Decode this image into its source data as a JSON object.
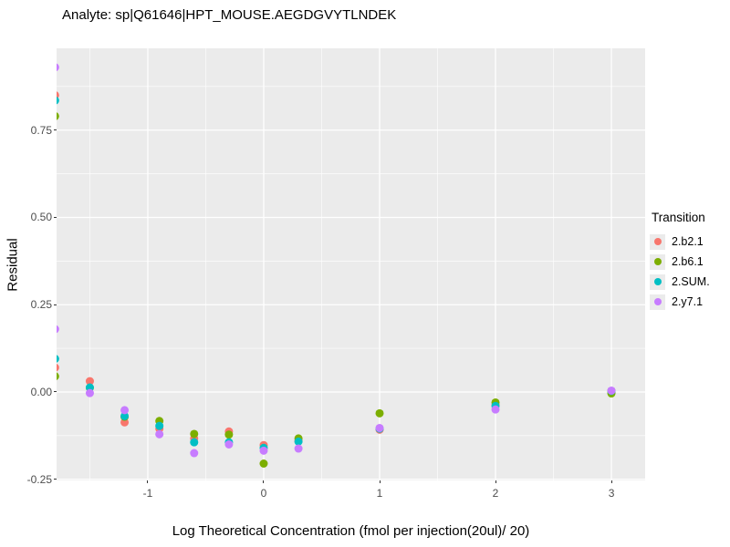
{
  "title": "Analyte: sp|Q61646|HPT_MOUSE.AEGDGVYTLNDEK",
  "legend": {
    "title": "Transition",
    "items": [
      {
        "label": "2.b2.1",
        "color": "#F8766D"
      },
      {
        "label": "2.b6.1",
        "color": "#7CAE00"
      },
      {
        "label": "2.SUM.",
        "color": "#00BFC4"
      },
      {
        "label": "2.y7.1",
        "color": "#C77CFF"
      }
    ]
  },
  "chart_data": {
    "type": "scatter",
    "title": "Analyte: sp|Q61646|HPT_MOUSE.AEGDGVYTLNDEK",
    "xlabel": "Log Theoretical Concentration (fmol per injection(20ul)/ 20)",
    "ylabel": "Residual",
    "xlim": [
      -1.787,
      3.291
    ],
    "ylim": [
      -0.2533,
      0.9843
    ],
    "x_ticks": {
      "values": [
        -1,
        0,
        1,
        2,
        3
      ],
      "labels": [
        "-1",
        "0",
        "1",
        "2",
        "3"
      ]
    },
    "y_ticks": {
      "values": [
        0.75,
        0.5,
        0.25,
        0,
        -0.25
      ],
      "labels": [
        "0.75",
        "0.50",
        "0.25",
        "0.00",
        "-0.25"
      ]
    },
    "x_minor": [
      -1.5,
      -0.5,
      0.5,
      1.5,
      2.5
    ],
    "y_minor": [
      0.875,
      0.625,
      0.375,
      0.125,
      -0.125
    ],
    "grid": {
      "panel_bg": "#EBEBEB",
      "major_color": "#FFFFFF",
      "minor_color": "#FFFFFF"
    },
    "legend_position": "right",
    "point_radius": 4.5,
    "series": [
      {
        "name": "2.b2.1",
        "color": "#F8766D",
        "points": [
          [
            -1.8,
            0.85
          ],
          [
            -1.8,
            0.07
          ],
          [
            -1.5,
            0.031
          ],
          [
            -1.2,
            -0.087
          ],
          [
            -0.9,
            -0.105
          ],
          [
            -0.6,
            -0.133
          ],
          [
            -0.3,
            -0.113
          ],
          [
            0,
            -0.152
          ],
          [
            0.3,
            -0.14
          ],
          [
            1,
            -0.108
          ],
          [
            2,
            -0.038
          ],
          [
            3,
            0.003
          ]
        ]
      },
      {
        "name": "2.b6.1",
        "color": "#7CAE00",
        "points": [
          [
            -1.8,
            0.79
          ],
          [
            -1.8,
            0.045
          ],
          [
            -1.5,
            0.012
          ],
          [
            -1.2,
            -0.071
          ],
          [
            -0.9,
            -0.083
          ],
          [
            -0.6,
            -0.12
          ],
          [
            -0.3,
            -0.122
          ],
          [
            0,
            -0.205
          ],
          [
            0.3,
            -0.133
          ],
          [
            1,
            -0.061
          ],
          [
            2,
            -0.03
          ],
          [
            3,
            -0.004
          ]
        ]
      },
      {
        "name": "2.SUM.",
        "color": "#00BFC4",
        "points": [
          [
            -1.8,
            0.835
          ],
          [
            -1.8,
            0.095
          ],
          [
            -1.5,
            0.013
          ],
          [
            -1.2,
            -0.069
          ],
          [
            -0.9,
            -0.097
          ],
          [
            -0.6,
            -0.144
          ],
          [
            -0.3,
            -0.144
          ],
          [
            0,
            -0.16
          ],
          [
            0.3,
            -0.142
          ],
          [
            1,
            -0.105
          ],
          [
            2,
            -0.04
          ],
          [
            3,
            0.003
          ]
        ]
      },
      {
        "name": "2.y7.1",
        "color": "#C77CFF",
        "points": [
          [
            -1.8,
            0.93
          ],
          [
            -1.8,
            0.18
          ],
          [
            -1.5,
            -0.003
          ],
          [
            -1.2,
            -0.052
          ],
          [
            -0.9,
            -0.121
          ],
          [
            -0.6,
            -0.175
          ],
          [
            -0.3,
            -0.15
          ],
          [
            0,
            -0.168
          ],
          [
            0.3,
            -0.162
          ],
          [
            1,
            -0.103
          ],
          [
            2,
            -0.05
          ],
          [
            3,
            0.004
          ]
        ]
      }
    ]
  }
}
